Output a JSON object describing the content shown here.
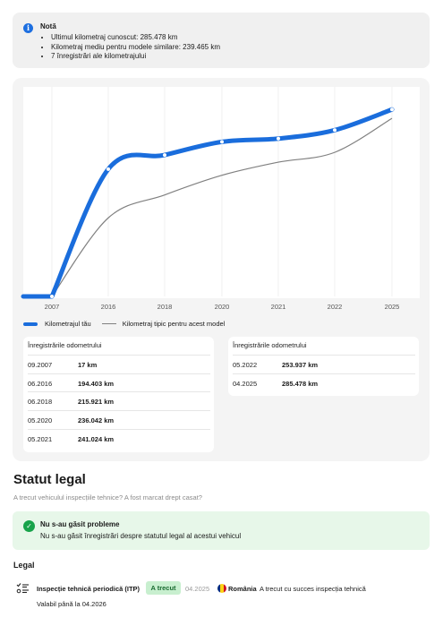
{
  "note": {
    "title": "Notă",
    "items": [
      "Ultimul kilometraj cunoscut: 285.478 km",
      "Kilometraj mediu pentru modele similare: 239.465 km",
      "7 înregistrări ale kilometrajului"
    ],
    "icon": "info-icon"
  },
  "chart_data": {
    "type": "line",
    "categories": [
      "2007",
      "2016",
      "2018",
      "2020",
      "2021",
      "2022",
      "2025"
    ],
    "series": [
      {
        "name": "Kilometrajul tău",
        "values": [
          17,
          194403,
          215921,
          236042,
          241024,
          253937,
          285478
        ],
        "color": "#1a6ddc"
      },
      {
        "name": "Kilometraj tipic pentru acest model",
        "values": [
          0,
          120000,
          155000,
          185000,
          205000,
          220000,
          272000
        ],
        "color": "#808080"
      }
    ],
    "ylim": [
      0,
      320000
    ],
    "grid": "vertical",
    "legend_position": "bottom-left"
  },
  "legend": {
    "yours": "Kilometrajul tău",
    "typical": "Kilometraj tipic pentru acest model"
  },
  "odometer_left": {
    "header": "Înregistrările odometrului",
    "rows": [
      {
        "date": "09.2007",
        "km": "17 km"
      },
      {
        "date": "06.2016",
        "km": "194.403 km"
      },
      {
        "date": "06.2018",
        "km": "215.921 km"
      },
      {
        "date": "05.2020",
        "km": "236.042 km"
      },
      {
        "date": "05.2021",
        "km": "241.024 km"
      }
    ]
  },
  "odometer_right": {
    "header": "Înregistrările odometrului",
    "rows": [
      {
        "date": "05.2022",
        "km": "253.937 km"
      },
      {
        "date": "04.2025",
        "km": "285.478 km"
      }
    ]
  },
  "statut": {
    "title": "Statut legal",
    "subtitle": "A trecut vehiculul inspecțiile tehnice? A fost marcat drept casat?"
  },
  "ok": {
    "title": "Nu s-au găsit probleme",
    "text": "Nu s-au găsit înregistrări despre statutul legal al acestui vehicul",
    "icon": "check-icon"
  },
  "legal": {
    "header": "Legal",
    "item": {
      "name": "Inspecție tehnică periodică (ITP)",
      "badge": "A trecut",
      "date": "04.2025",
      "country": "România",
      "desc": "A trecut cu succes inspecția tehnică",
      "valid": "Valabil până la 04.2026"
    }
  },
  "colors": {
    "accent": "#1a6ddc",
    "typical_line": "#808080",
    "ok_bg": "#e7f7e9",
    "ok_icon": "#17a34a",
    "badge_bg": "#c8efcf"
  }
}
